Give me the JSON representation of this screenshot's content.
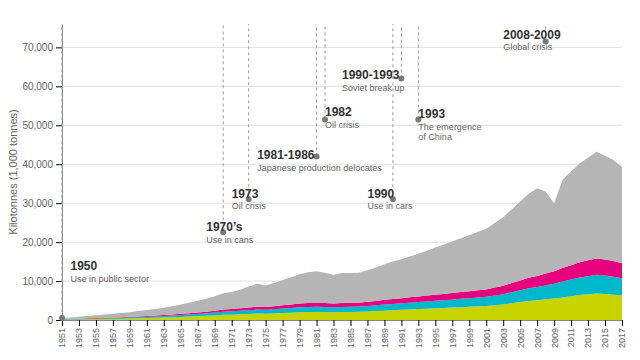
{
  "chart_data": {
    "type": "area",
    "stacked": true,
    "ylabel": "Kilotonnes (1,000 tonnes)",
    "grid": true,
    "x": [
      1951,
      1952,
      1953,
      1954,
      1955,
      1956,
      1957,
      1958,
      1959,
      1960,
      1961,
      1962,
      1963,
      1964,
      1965,
      1966,
      1967,
      1968,
      1969,
      1970,
      1971,
      1972,
      1973,
      1974,
      1975,
      1976,
      1977,
      1978,
      1979,
      1980,
      1981,
      1982,
      1983,
      1984,
      1985,
      1986,
      1987,
      1988,
      1989,
      1990,
      1991,
      1992,
      1993,
      1994,
      1995,
      1996,
      1997,
      1998,
      1999,
      2000,
      2001,
      2002,
      2003,
      2004,
      2005,
      2006,
      2007,
      2008,
      2009,
      2010,
      2011,
      2012,
      2013,
      2014,
      2015,
      2016,
      2017
    ],
    "series": [
      {
        "color": "#c8d400",
        "values": [
          100,
          130,
          160,
          200,
          240,
          280,
          320,
          350,
          400,
          450,
          500,
          560,
          620,
          700,
          780,
          870,
          960,
          1060,
          1180,
          1320,
          1380,
          1460,
          1560,
          1650,
          1600,
          1700,
          1800,
          1890,
          1980,
          2030,
          2050,
          2050,
          2000,
          2050,
          2080,
          2100,
          2180,
          2290,
          2400,
          2500,
          2600,
          2700,
          2800,
          2900,
          3000,
          3100,
          3200,
          3300,
          3400,
          3500,
          3600,
          3800,
          4000,
          4300,
          4600,
          4900,
          5100,
          5300,
          5500,
          5800,
          6100,
          6400,
          6600,
          6800,
          6700,
          6500,
          6300
        ]
      },
      {
        "color": "#00b8cc",
        "values": [
          80,
          100,
          120,
          140,
          170,
          190,
          220,
          240,
          270,
          300,
          330,
          360,
          400,
          440,
          490,
          540,
          590,
          650,
          720,
          800,
          840,
          900,
          970,
          1030,
          1000,
          1060,
          1130,
          1200,
          1270,
          1310,
          1330,
          1310,
          1280,
          1320,
          1330,
          1340,
          1400,
          1470,
          1550,
          1610,
          1670,
          1730,
          1790,
          1860,
          1930,
          1990,
          2060,
          2130,
          2200,
          2270,
          2340,
          2490,
          2640,
          2840,
          3040,
          3240,
          3370,
          3580,
          3790,
          4060,
          4280,
          4510,
          4660,
          4810,
          4700,
          4600,
          4390
        ]
      },
      {
        "color": "#e6007e",
        "values": [
          50,
          60,
          70,
          80,
          100,
          110,
          120,
          130,
          150,
          170,
          190,
          210,
          240,
          270,
          310,
          350,
          390,
          440,
          500,
          570,
          590,
          640,
          700,
          750,
          720,
          780,
          840,
          900,
          960,
          1000,
          1010,
          990,
          970,
          1000,
          1010,
          1020,
          1080,
          1150,
          1220,
          1280,
          1330,
          1390,
          1440,
          1500,
          1560,
          1610,
          1670,
          1730,
          1790,
          1860,
          1920,
          2040,
          2170,
          2350,
          2530,
          2720,
          2840,
          3030,
          3230,
          3470,
          3680,
          3900,
          4050,
          4210,
          4120,
          4040,
          3860
        ]
      },
      {
        "color": "#b5b5b5",
        "values": [
          300,
          380,
          470,
          580,
          700,
          830,
          960,
          1060,
          1200,
          1380,
          1520,
          1680,
          1890,
          2140,
          2400,
          2690,
          2980,
          3310,
          3710,
          4210,
          4380,
          4790,
          5360,
          5870,
          5530,
          5990,
          6530,
          7010,
          7560,
          7900,
          8110,
          7760,
          7350,
          7680,
          7660,
          7640,
          8130,
          8590,
          9130,
          9610,
          10000,
          10480,
          10970,
          11540,
          12110,
          12680,
          13250,
          13820,
          14390,
          14970,
          15550,
          16570,
          17590,
          18910,
          20230,
          21550,
          22490,
          21090,
          17480,
          22670,
          24040,
          25350,
          26350,
          27350,
          26660,
          25960,
          24750
        ]
      }
    ],
    "xlim": [
      1951,
      2017
    ],
    "xticks": [
      1951,
      1953,
      1955,
      1957,
      1959,
      1961,
      1963,
      1965,
      1967,
      1969,
      1971,
      1973,
      1975,
      1977,
      1979,
      1981,
      1983,
      1985,
      1987,
      1989,
      1991,
      1993,
      1995,
      1997,
      1999,
      2001,
      2003,
      2005,
      2007,
      2009,
      2011,
      2013,
      2015,
      2017
    ],
    "ylim": [
      0,
      76000
    ],
    "yticks": [
      0,
      {
        "value": 10000,
        "label": "10,000"
      },
      {
        "value": 20000,
        "label": "20,000"
      },
      {
        "value": 30000,
        "label": "30,000"
      },
      {
        "value": 40000,
        "label": "40,000"
      },
      {
        "value": 50000,
        "label": "50,000"
      },
      {
        "value": 60000,
        "label": "60,000"
      },
      {
        "value": 70000,
        "label": "70,000"
      }
    ],
    "annotations": [
      {
        "x": 1951,
        "y": 500,
        "label": "1950",
        "sublabel": "Use in public sector",
        "label_x": 1952,
        "label_y": 12500
      },
      {
        "x": 1970,
        "y": 22500,
        "label": "1970’s",
        "sublabel": "Use in cans",
        "label_x": 1968,
        "label_y": 22500
      },
      {
        "x": 1973,
        "y": 31000,
        "label": "1973",
        "sublabel": "Oil crisis",
        "label_x": 1971,
        "label_y": 31000
      },
      {
        "x": 1981,
        "y": 42000,
        "label": "1981-1986",
        "sublabel": "Japanese production delocates",
        "label_x": 1974,
        "label_y": 41000
      },
      {
        "x": 1982,
        "y": 51500,
        "label": "1982",
        "sublabel": "Oil crisis",
        "label_x": 1982,
        "label_y": 52000
      },
      {
        "x": 1990,
        "y": 31000,
        "label": "1990",
        "sublabel": "Use in cars",
        "label_x": 1987,
        "label_y": 31000
      },
      {
        "x": 1991,
        "y": 62000,
        "label": "1990-1993",
        "sublabel": "Soviet break up",
        "label_x": 1984,
        "label_y": 61500
      },
      {
        "x": 1993,
        "y": 51500,
        "label": "1993",
        "sublabel": "The emergence\nof China",
        "label_x": 1993,
        "label_y": 51500
      },
      {
        "x": 2008,
        "y": 71500,
        "label": "2008-2009",
        "sublabel": "Global crisis",
        "label_x": 2003,
        "label_y": 72000
      }
    ]
  }
}
